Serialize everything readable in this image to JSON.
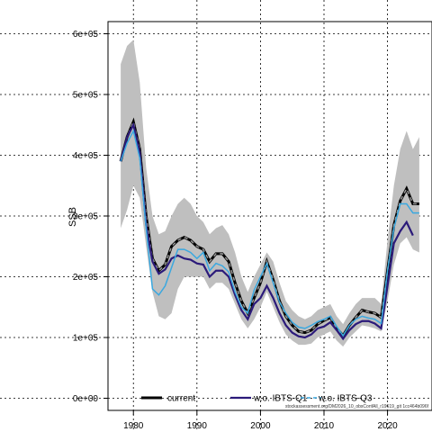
{
  "chart_data": {
    "type": "line",
    "title": "",
    "xlabel": "",
    "ylabel": "SSB",
    "xlim": [
      1976,
      2027
    ],
    "ylim": [
      -20000,
      620000
    ],
    "grid": true,
    "x_ticks": [
      1980,
      1990,
      2000,
      2010,
      2020
    ],
    "y_ticks": [
      {
        "value": 0,
        "label": "0e+00"
      },
      {
        "value": 100000,
        "label": "1e+05"
      },
      {
        "value": 200000,
        "label": "2e+05"
      },
      {
        "value": 300000,
        "label": "3e+05"
      },
      {
        "value": 400000,
        "label": "4e+05"
      },
      {
        "value": 500000,
        "label": "5e+05"
      },
      {
        "value": 600000,
        "label": "6e+05"
      }
    ],
    "legend_position": "bottom",
    "x": [
      1978,
      1979,
      1980,
      1981,
      1982,
      1983,
      1984,
      1985,
      1986,
      1987,
      1988,
      1989,
      1990,
      1991,
      1992,
      1993,
      1994,
      1995,
      1996,
      1997,
      1998,
      1999,
      2000,
      2001,
      2002,
      2003,
      2004,
      2005,
      2006,
      2007,
      2008,
      2009,
      2010,
      2011,
      2012,
      2013,
      2014,
      2015,
      2016,
      2017,
      2018,
      2019,
      2020,
      2021,
      2022,
      2023,
      2024,
      2025
    ],
    "series": [
      {
        "name": "current",
        "color": "#000000",
        "style": "solid-dashed-grey",
        "values": [
          390000,
          430000,
          455000,
          410000,
          300000,
          230000,
          210000,
          220000,
          250000,
          260000,
          265000,
          260000,
          250000,
          245000,
          225000,
          238000,
          238000,
          225000,
          190000,
          160000,
          140000,
          165000,
          190000,
          225000,
          195000,
          160000,
          135000,
          120000,
          110000,
          108000,
          112000,
          122000,
          128000,
          133000,
          115000,
          103000,
          120000,
          133000,
          145000,
          142000,
          140000,
          133000,
          210000,
          285000,
          325000,
          345000,
          320000,
          320000
        ]
      },
      {
        "name": "w.o. IBTS-Q1",
        "color": "#2b1a7a",
        "style": "solid",
        "values": [
          390000,
          430000,
          450000,
          405000,
          285000,
          225000,
          205000,
          212000,
          230000,
          235000,
          230000,
          228000,
          222000,
          220000,
          200000,
          210000,
          210000,
          200000,
          170000,
          145000,
          130000,
          155000,
          165000,
          185000,
          165000,
          140000,
          120000,
          108000,
          102000,
          100000,
          105000,
          115000,
          118000,
          125000,
          112000,
          98000,
          112000,
          122000,
          127000,
          127000,
          123000,
          115000,
          185000,
          255000,
          275000,
          290000,
          268000,
          null
        ]
      },
      {
        "name": "w.o. IBTS-Q3",
        "color": "#3aa8e0",
        "style": "dashed",
        "values": [
          390000,
          420000,
          440000,
          395000,
          280000,
          180000,
          170000,
          185000,
          215000,
          245000,
          245000,
          240000,
          230000,
          240000,
          210000,
          222000,
          218000,
          208000,
          175000,
          150000,
          140000,
          178000,
          200000,
          222000,
          190000,
          158000,
          140000,
          125000,
          117000,
          115000,
          120000,
          126000,
          130000,
          135000,
          118000,
          103000,
          120000,
          130000,
          135000,
          132000,
          130000,
          123000,
          210000,
          280000,
          320000,
          320000,
          305000,
          305000
        ]
      }
    ],
    "band": {
      "color": "#bfbfbf",
      "upper": [
        550000,
        580000,
        590000,
        520000,
        380000,
        300000,
        270000,
        275000,
        300000,
        320000,
        330000,
        320000,
        300000,
        290000,
        270000,
        280000,
        285000,
        270000,
        240000,
        200000,
        175000,
        200000,
        220000,
        240000,
        225000,
        190000,
        160000,
        145000,
        135000,
        130000,
        135000,
        145000,
        150000,
        155000,
        135000,
        122000,
        140000,
        155000,
        165000,
        165000,
        165000,
        155000,
        260000,
        350000,
        410000,
        440000,
        410000,
        430000
      ],
      "lower": [
        280000,
        310000,
        350000,
        330000,
        250000,
        175000,
        135000,
        130000,
        140000,
        180000,
        200000,
        200000,
        200000,
        200000,
        180000,
        190000,
        190000,
        180000,
        155000,
        130000,
        115000,
        130000,
        150000,
        175000,
        150000,
        125000,
        105000,
        95000,
        88000,
        88000,
        90000,
        100000,
        105000,
        110000,
        95000,
        85000,
        100000,
        110000,
        120000,
        118000,
        115000,
        110000,
        160000,
        220000,
        255000,
        265000,
        245000,
        240000
      ]
    }
  },
  "footnote": "stockassessment.org/DM2026_10_obsConfAll_r19619_git 1cc464b096f"
}
